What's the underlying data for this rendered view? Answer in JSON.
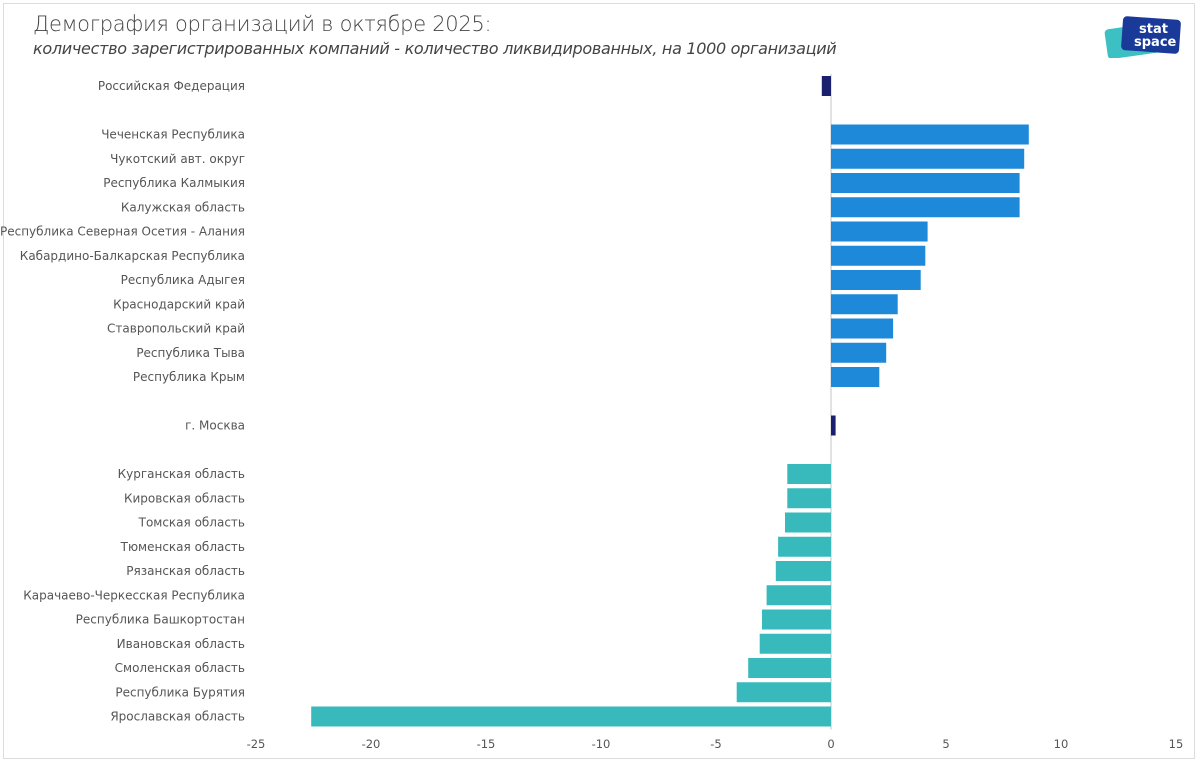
{
  "header": {
    "title": "Демография организаций в октябре 2025:",
    "subtitle": "количество зарегистрированных компаний - количество ликвидированных, на 1000 организаций"
  },
  "logo": {
    "line1": "stat",
    "line2": "space",
    "colors": {
      "dark": "#1a3a9a",
      "light": "#3cc0c4"
    }
  },
  "chart_data": {
    "type": "bar",
    "orientation": "horizontal",
    "title": "Демография организаций в октябре 2025:",
    "subtitle": "количество зарегистрированных компаний - количество ликвидированных, на 1000 организаций",
    "xlabel": "",
    "ylabel": "",
    "xlim": [
      -25,
      15
    ],
    "xticks": [
      -25,
      -20,
      -15,
      -10,
      -5,
      0,
      5,
      10,
      15
    ],
    "grid": false,
    "legend": "none",
    "colors": {
      "reference": "#1a1f6e",
      "top": "#1e88d9",
      "bottom": "#38b9bb"
    },
    "groups": [
      {
        "name": "reference-top",
        "rows": [
          {
            "label": "Российская Федерация",
            "value": -0.4,
            "color": "reference"
          }
        ]
      },
      {
        "name": "top",
        "rows": [
          {
            "label": "Чеченская Республика",
            "value": 8.6,
            "color": "top"
          },
          {
            "label": "Чукотский авт. округ",
            "value": 8.4,
            "color": "top"
          },
          {
            "label": "Республика Калмыкия",
            "value": 8.2,
            "color": "top"
          },
          {
            "label": "Калужская область",
            "value": 8.2,
            "color": "top"
          },
          {
            "label": "Республика Северная Осетия - Алания",
            "value": 4.2,
            "color": "top"
          },
          {
            "label": "Кабардино-Балкарская Республика",
            "value": 4.1,
            "color": "top"
          },
          {
            "label": "Республика Адыгея",
            "value": 3.9,
            "color": "top"
          },
          {
            "label": "Краснодарский край",
            "value": 2.9,
            "color": "top"
          },
          {
            "label": "Ставропольский край",
            "value": 2.7,
            "color": "top"
          },
          {
            "label": "Республика Тыва",
            "value": 2.4,
            "color": "top"
          },
          {
            "label": "Республика Крым",
            "value": 2.1,
            "color": "top"
          }
        ]
      },
      {
        "name": "reference-mid",
        "rows": [
          {
            "label": "г. Москва",
            "value": 0.2,
            "color": "reference"
          }
        ]
      },
      {
        "name": "bottom",
        "rows": [
          {
            "label": "Курганская область",
            "value": -1.9,
            "color": "bottom"
          },
          {
            "label": "Кировская область",
            "value": -1.9,
            "color": "bottom"
          },
          {
            "label": "Томская область",
            "value": -2.0,
            "color": "bottom"
          },
          {
            "label": "Тюменская область",
            "value": -2.3,
            "color": "bottom"
          },
          {
            "label": "Рязанская область",
            "value": -2.4,
            "color": "bottom"
          },
          {
            "label": "Карачаево-Черкесская Республика",
            "value": -2.8,
            "color": "bottom"
          },
          {
            "label": "Республика Башкортостан",
            "value": -3.0,
            "color": "bottom"
          },
          {
            "label": "Ивановская область",
            "value": -3.1,
            "color": "bottom"
          },
          {
            "label": "Смоленская область",
            "value": -3.6,
            "color": "bottom"
          },
          {
            "label": "Республика Бурятия",
            "value": -4.1,
            "color": "bottom"
          },
          {
            "label": "Ярославская область",
            "value": -22.6,
            "color": "bottom"
          }
        ]
      }
    ]
  }
}
